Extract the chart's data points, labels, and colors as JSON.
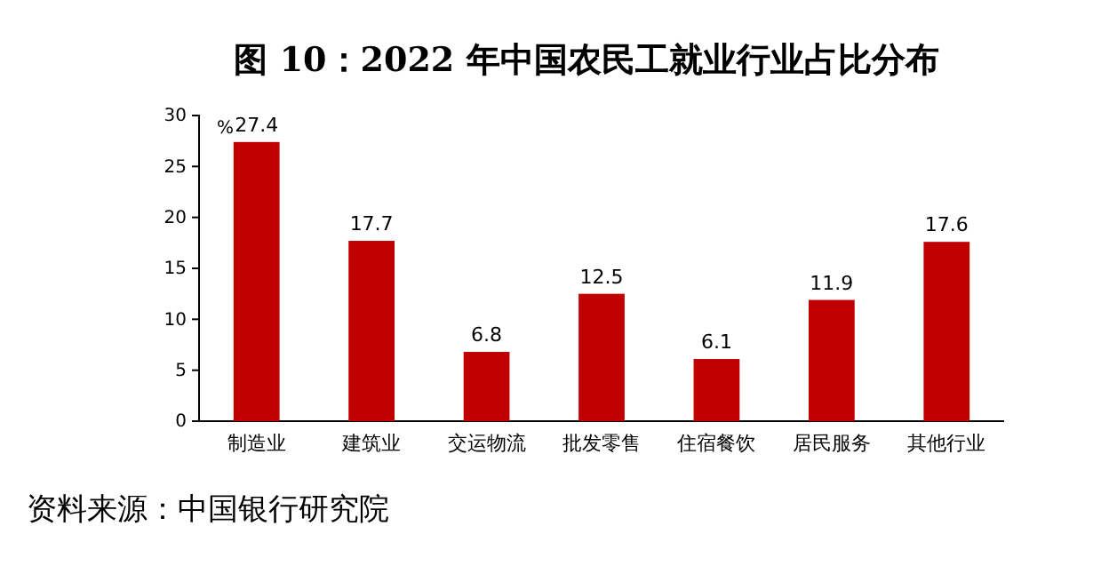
{
  "chart_data": {
    "type": "bar",
    "title": "图 10：2022 年中国农民工就业行业占比分布",
    "ylabel": "%",
    "categories": [
      "制造业",
      "建筑业",
      "交运物流",
      "批发零售",
      "住宿餐饮",
      "居民服务",
      "其他行业"
    ],
    "values": [
      27.4,
      17.7,
      6.8,
      12.5,
      6.1,
      11.9,
      17.6
    ],
    "color": "#c00000",
    "ylim": [
      0,
      30
    ],
    "yticks": [
      0,
      5,
      10,
      15,
      20,
      25,
      30
    ],
    "grid": false,
    "data_labels": true,
    "annotations": [
      "资料来源：中国银行研究院"
    ]
  }
}
